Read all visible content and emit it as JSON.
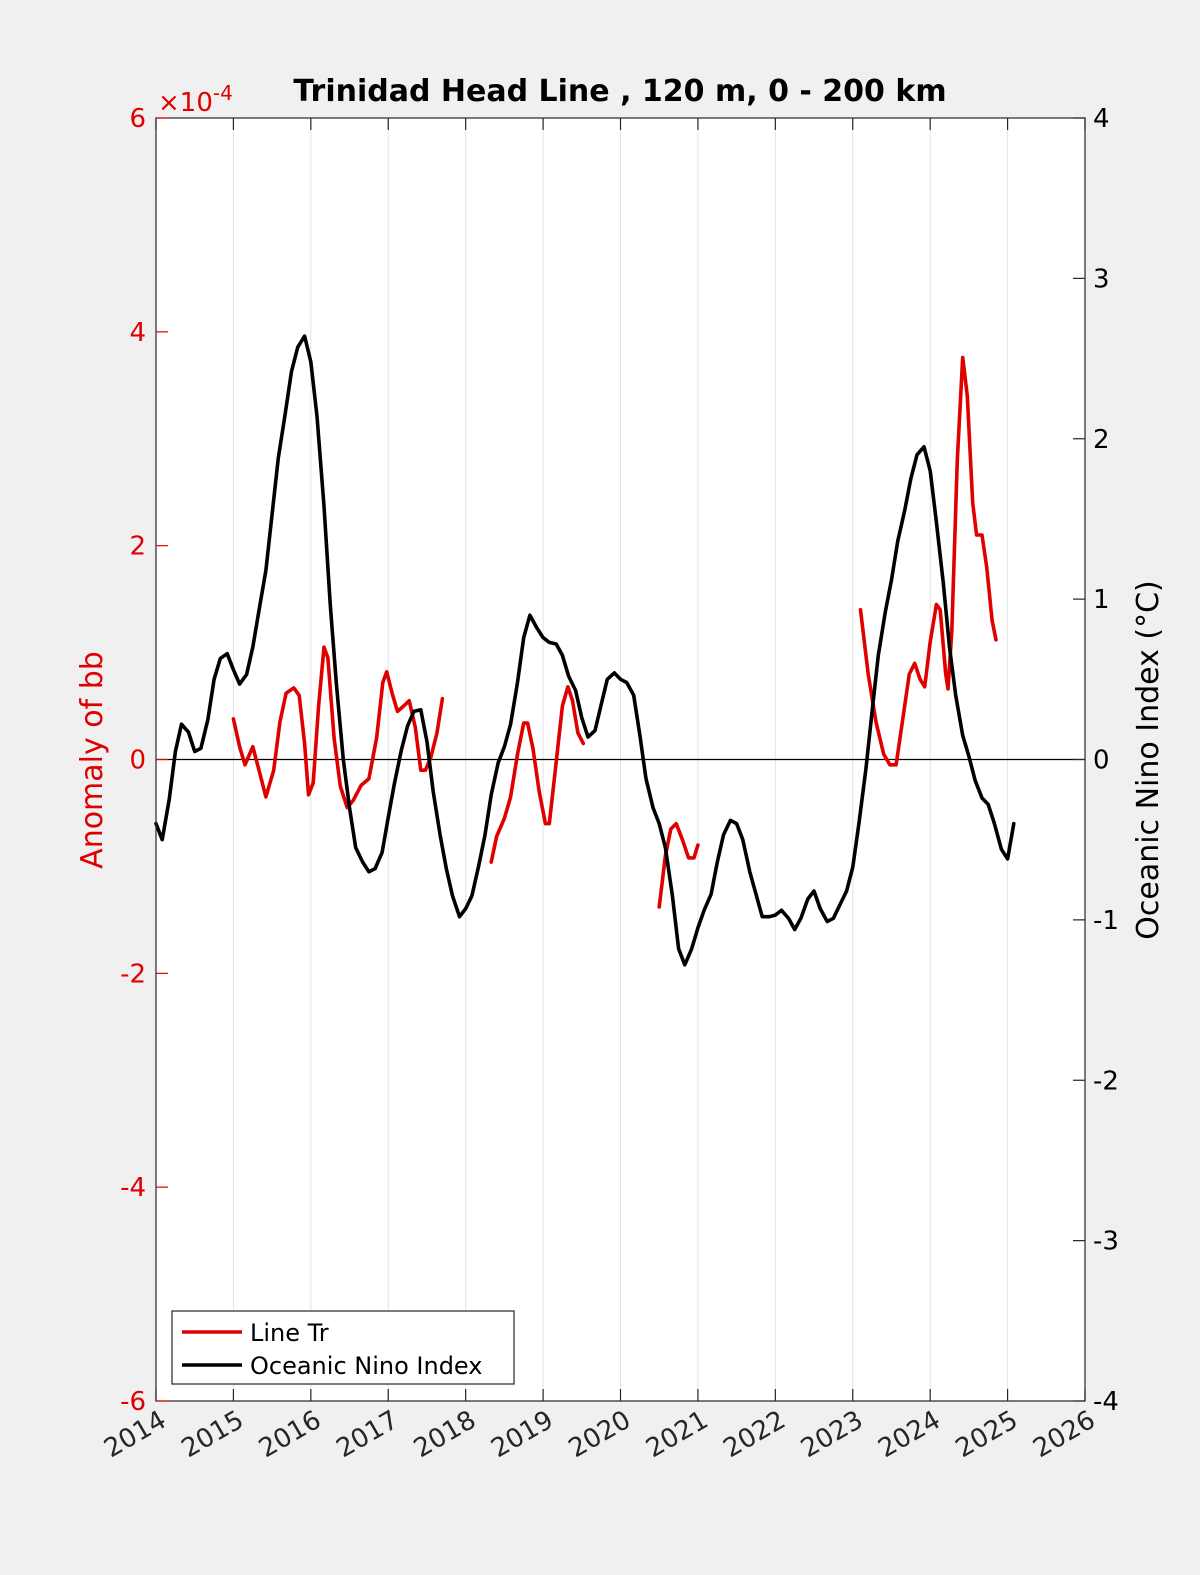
{
  "chart_data": {
    "type": "line",
    "title": "Trinidad Head Line , 120 m, 0 - 200 km",
    "xlabel": "",
    "ylabel_left": "Anomaly of bb",
    "ylabel_right": "Oceanic Nino Index (°C)",
    "left_exponent_label": "×10",
    "left_exponent_power": "-4",
    "xlim": [
      2014,
      2026
    ],
    "ylim_left": [
      -6,
      6
    ],
    "ylim_right": [
      -4,
      4
    ],
    "x_ticks": [
      "2014",
      "2015",
      "2016",
      "2017",
      "2018",
      "2019",
      "2020",
      "2021",
      "2022",
      "2023",
      "2024",
      "2025",
      "2026"
    ],
    "y_ticks_left": [
      "-6",
      "-4",
      "-2",
      "0",
      "2",
      "4",
      "6"
    ],
    "y_ticks_right": [
      "-4",
      "-3",
      "-2",
      "-1",
      "0",
      "1",
      "2",
      "3",
      "4"
    ],
    "grid": "vertical",
    "legend": "bottom-left",
    "colors": {
      "line_tr": "#e00000",
      "oni": "#000000",
      "left_axis": "#e00000"
    },
    "series": [
      {
        "name": "Line Tr",
        "axis": "left",
        "segments": [
          [
            [
              2015.0,
              0.38
            ],
            [
              2015.08,
              0.12
            ],
            [
              2015.15,
              -0.05
            ],
            [
              2015.25,
              0.12
            ],
            [
              2015.33,
              -0.1
            ],
            [
              2015.42,
              -0.35
            ],
            [
              2015.52,
              -0.1
            ],
            [
              2015.6,
              0.35
            ],
            [
              2015.68,
              0.62
            ],
            [
              2015.78,
              0.67
            ],
            [
              2015.85,
              0.6
            ],
            [
              2015.92,
              0.15
            ],
            [
              2015.97,
              -0.33
            ],
            [
              2016.03,
              -0.22
            ],
            [
              2016.1,
              0.5
            ],
            [
              2016.17,
              1.05
            ],
            [
              2016.22,
              0.95
            ],
            [
              2016.3,
              0.2
            ],
            [
              2016.38,
              -0.25
            ],
            [
              2016.47,
              -0.45
            ],
            [
              2016.55,
              -0.38
            ],
            [
              2016.65,
              -0.24
            ],
            [
              2016.75,
              -0.18
            ],
            [
              2016.85,
              0.2
            ],
            [
              2016.93,
              0.72
            ],
            [
              2016.98,
              0.82
            ],
            [
              2017.05,
              0.62
            ],
            [
              2017.12,
              0.45
            ],
            [
              2017.2,
              0.5
            ],
            [
              2017.27,
              0.55
            ],
            [
              2017.35,
              0.3
            ],
            [
              2017.42,
              -0.1
            ],
            [
              2017.48,
              -0.1
            ],
            [
              2017.55,
              0.02
            ],
            [
              2017.63,
              0.25
            ],
            [
              2017.7,
              0.57
            ]
          ],
          [
            [
              2018.33,
              -0.96
            ],
            [
              2018.4,
              -0.72
            ],
            [
              2018.5,
              -0.55
            ],
            [
              2018.58,
              -0.35
            ],
            [
              2018.67,
              0.05
            ],
            [
              2018.75,
              0.34
            ],
            [
              2018.8,
              0.34
            ],
            [
              2018.87,
              0.1
            ],
            [
              2018.95,
              -0.3
            ],
            [
              2019.03,
              -0.6
            ],
            [
              2019.08,
              -0.6
            ],
            [
              2019.15,
              -0.15
            ],
            [
              2019.25,
              0.5
            ],
            [
              2019.32,
              0.68
            ],
            [
              2019.38,
              0.55
            ],
            [
              2019.45,
              0.25
            ],
            [
              2019.52,
              0.15
            ]
          ],
          [
            [
              2020.5,
              -1.38
            ],
            [
              2020.58,
              -0.9
            ],
            [
              2020.65,
              -0.65
            ],
            [
              2020.72,
              -0.6
            ],
            [
              2020.8,
              -0.75
            ],
            [
              2020.88,
              -0.92
            ],
            [
              2020.95,
              -0.92
            ],
            [
              2021.0,
              -0.8
            ]
          ],
          [
            [
              2023.1,
              1.4
            ],
            [
              2023.2,
              0.8
            ],
            [
              2023.3,
              0.35
            ],
            [
              2023.4,
              0.05
            ],
            [
              2023.48,
              -0.05
            ],
            [
              2023.56,
              -0.05
            ],
            [
              2023.65,
              0.4
            ],
            [
              2023.73,
              0.8
            ],
            [
              2023.8,
              0.9
            ],
            [
              2023.87,
              0.75
            ],
            [
              2023.93,
              0.68
            ],
            [
              2024.0,
              1.1
            ],
            [
              2024.08,
              1.45
            ],
            [
              2024.13,
              1.4
            ],
            [
              2024.2,
              0.8
            ],
            [
              2024.23,
              0.66
            ],
            [
              2024.28,
              1.2
            ],
            [
              2024.35,
              2.8
            ],
            [
              2024.42,
              3.76
            ],
            [
              2024.48,
              3.4
            ],
            [
              2024.55,
              2.4
            ],
            [
              2024.6,
              2.1
            ],
            [
              2024.67,
              2.1
            ],
            [
              2024.73,
              1.8
            ],
            [
              2024.8,
              1.3
            ],
            [
              2024.85,
              1.12
            ]
          ]
        ]
      },
      {
        "name": "Oceanic Nino Index",
        "axis": "right",
        "points": [
          [
            2014.0,
            -0.4
          ],
          [
            2014.08,
            -0.5
          ],
          [
            2014.17,
            -0.25
          ],
          [
            2014.25,
            0.05
          ],
          [
            2014.33,
            0.22
          ],
          [
            2014.42,
            0.17
          ],
          [
            2014.5,
            0.05
          ],
          [
            2014.58,
            0.07
          ],
          [
            2014.67,
            0.25
          ],
          [
            2014.75,
            0.5
          ],
          [
            2014.83,
            0.63
          ],
          [
            2014.92,
            0.66
          ],
          [
            2015.0,
            0.56
          ],
          [
            2015.08,
            0.47
          ],
          [
            2015.17,
            0.53
          ],
          [
            2015.25,
            0.7
          ],
          [
            2015.33,
            0.93
          ],
          [
            2015.42,
            1.18
          ],
          [
            2015.5,
            1.53
          ],
          [
            2015.58,
            1.88
          ],
          [
            2015.67,
            2.16
          ],
          [
            2015.75,
            2.42
          ],
          [
            2015.83,
            2.57
          ],
          [
            2015.92,
            2.64
          ],
          [
            2016.0,
            2.48
          ],
          [
            2016.08,
            2.14
          ],
          [
            2016.17,
            1.58
          ],
          [
            2016.25,
            0.97
          ],
          [
            2016.33,
            0.47
          ],
          [
            2016.42,
            0.0
          ],
          [
            2016.5,
            -0.3
          ],
          [
            2016.58,
            -0.55
          ],
          [
            2016.67,
            -0.64
          ],
          [
            2016.75,
            -0.7
          ],
          [
            2016.83,
            -0.68
          ],
          [
            2016.92,
            -0.58
          ],
          [
            2017.0,
            -0.36
          ],
          [
            2017.08,
            -0.15
          ],
          [
            2017.17,
            0.06
          ],
          [
            2017.25,
            0.21
          ],
          [
            2017.33,
            0.3
          ],
          [
            2017.42,
            0.31
          ],
          [
            2017.5,
            0.11
          ],
          [
            2017.58,
            -0.2
          ],
          [
            2017.67,
            -0.47
          ],
          [
            2017.75,
            -0.68
          ],
          [
            2017.83,
            -0.85
          ],
          [
            2017.92,
            -0.98
          ],
          [
            2018.0,
            -0.93
          ],
          [
            2018.08,
            -0.85
          ],
          [
            2018.17,
            -0.66
          ],
          [
            2018.25,
            -0.47
          ],
          [
            2018.33,
            -0.22
          ],
          [
            2018.42,
            -0.02
          ],
          [
            2018.5,
            0.08
          ],
          [
            2018.58,
            0.22
          ],
          [
            2018.67,
            0.48
          ],
          [
            2018.75,
            0.76
          ],
          [
            2018.83,
            0.9
          ],
          [
            2018.92,
            0.82
          ],
          [
            2019.0,
            0.76
          ],
          [
            2019.08,
            0.73
          ],
          [
            2019.17,
            0.72
          ],
          [
            2019.25,
            0.65
          ],
          [
            2019.33,
            0.52
          ],
          [
            2019.42,
            0.43
          ],
          [
            2019.5,
            0.26
          ],
          [
            2019.58,
            0.14
          ],
          [
            2019.67,
            0.18
          ],
          [
            2019.75,
            0.34
          ],
          [
            2019.83,
            0.5
          ],
          [
            2019.92,
            0.54
          ],
          [
            2020.0,
            0.5
          ],
          [
            2020.08,
            0.48
          ],
          [
            2020.17,
            0.4
          ],
          [
            2020.25,
            0.15
          ],
          [
            2020.33,
            -0.12
          ],
          [
            2020.42,
            -0.3
          ],
          [
            2020.5,
            -0.4
          ],
          [
            2020.58,
            -0.55
          ],
          [
            2020.67,
            -0.85
          ],
          [
            2020.75,
            -1.18
          ],
          [
            2020.83,
            -1.28
          ],
          [
            2020.92,
            -1.18
          ],
          [
            2021.0,
            -1.05
          ],
          [
            2021.08,
            -0.94
          ],
          [
            2021.17,
            -0.84
          ],
          [
            2021.25,
            -0.64
          ],
          [
            2021.33,
            -0.47
          ],
          [
            2021.42,
            -0.38
          ],
          [
            2021.5,
            -0.4
          ],
          [
            2021.58,
            -0.5
          ],
          [
            2021.67,
            -0.7
          ],
          [
            2021.75,
            -0.84
          ],
          [
            2021.83,
            -0.98
          ],
          [
            2021.92,
            -0.98
          ],
          [
            2022.0,
            -0.97
          ],
          [
            2022.08,
            -0.94
          ],
          [
            2022.17,
            -0.99
          ],
          [
            2022.25,
            -1.06
          ],
          [
            2022.33,
            -0.99
          ],
          [
            2022.42,
            -0.87
          ],
          [
            2022.5,
            -0.82
          ],
          [
            2022.58,
            -0.93
          ],
          [
            2022.67,
            -1.01
          ],
          [
            2022.75,
            -0.99
          ],
          [
            2022.83,
            -0.91
          ],
          [
            2022.92,
            -0.82
          ],
          [
            2023.0,
            -0.67
          ],
          [
            2023.08,
            -0.4
          ],
          [
            2023.17,
            -0.06
          ],
          [
            2023.25,
            0.3
          ],
          [
            2023.33,
            0.65
          ],
          [
            2023.42,
            0.92
          ],
          [
            2023.5,
            1.12
          ],
          [
            2023.58,
            1.36
          ],
          [
            2023.67,
            1.55
          ],
          [
            2023.75,
            1.75
          ],
          [
            2023.83,
            1.9
          ],
          [
            2023.92,
            1.95
          ],
          [
            2024.0,
            1.8
          ],
          [
            2024.08,
            1.48
          ],
          [
            2024.17,
            1.1
          ],
          [
            2024.25,
            0.7
          ],
          [
            2024.33,
            0.4
          ],
          [
            2024.42,
            0.15
          ],
          [
            2024.5,
            0.02
          ],
          [
            2024.58,
            -0.13
          ],
          [
            2024.67,
            -0.24
          ],
          [
            2024.75,
            -0.28
          ],
          [
            2024.83,
            -0.4
          ],
          [
            2024.92,
            -0.56
          ],
          [
            2025.0,
            -0.62
          ],
          [
            2025.08,
            -0.4
          ]
        ]
      }
    ]
  },
  "legend": {
    "line_tr_label": "Line Tr",
    "oni_label": "Oceanic Nino Index"
  }
}
